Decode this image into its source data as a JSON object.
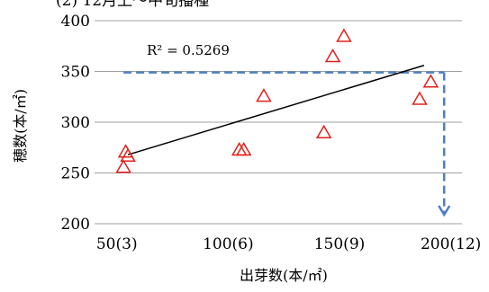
{
  "chart_data": {
    "type": "scatter",
    "title": "(2) 12月上～中旬播種",
    "xlabel": "出芽数(本/㎡)",
    "ylabel": "穂数(本/㎡)",
    "xlim": [
      40,
      205
    ],
    "ylim": [
      200,
      400
    ],
    "x_ticks": [
      {
        "value": 50,
        "label": "50(3)"
      },
      {
        "value": 100,
        "label": "100(6)"
      },
      {
        "value": 150,
        "label": "150(9)"
      },
      {
        "value": 200,
        "label": "200(12)"
      }
    ],
    "y_ticks": [
      200,
      250,
      300,
      350,
      400
    ],
    "grid": {
      "horizontal": true,
      "vertical": false
    },
    "points": [
      {
        "x": 53,
        "y": 256
      },
      {
        "x": 54,
        "y": 271
      },
      {
        "x": 55,
        "y": 267
      },
      {
        "x": 105,
        "y": 273
      },
      {
        "x": 107,
        "y": 273
      },
      {
        "x": 116,
        "y": 326
      },
      {
        "x": 143,
        "y": 290
      },
      {
        "x": 147,
        "y": 365
      },
      {
        "x": 152,
        "y": 385
      },
      {
        "x": 186,
        "y": 323
      },
      {
        "x": 191,
        "y": 340
      }
    ],
    "marker": {
      "shape": "triangle",
      "color": "#e0201b"
    },
    "trendline": {
      "x": [
        55,
        188
      ],
      "y": [
        268,
        356
      ],
      "color": "#000000"
    },
    "r2_label": "R² = 0.5269",
    "guide": {
      "color": "#4f7fc0",
      "y": 349,
      "x_start": 53,
      "x_end": 197,
      "arrow_to_y": 200
    }
  }
}
